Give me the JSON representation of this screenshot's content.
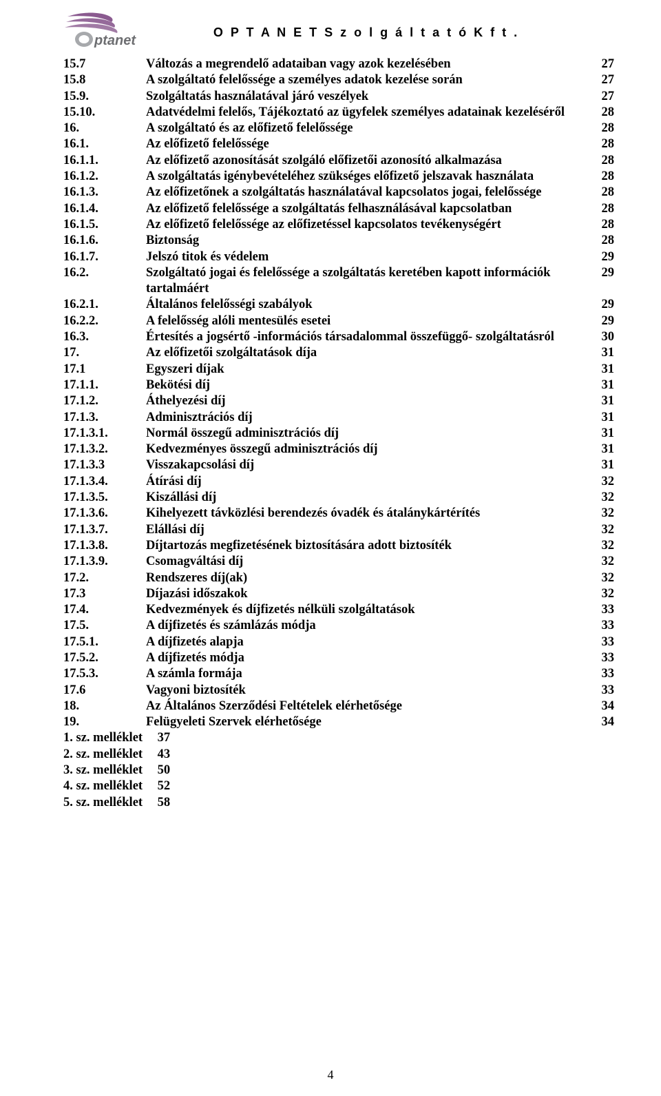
{
  "company_title": "O P T A N E T   S z o l g á l t a t ó   K f t .",
  "logo": {
    "brand_text": "Optanet",
    "swoosh_color": "#8a5a8f",
    "text_color": "#6d6e71",
    "o_fill": "#a7a9ac"
  },
  "page_number": "4",
  "toc": [
    {
      "num": "15.7",
      "title": "Változás a megrendelő adataiban vagy azok kezelésében",
      "page": "27"
    },
    {
      "num": "15.8",
      "title": "A szolgáltató felelőssége a személyes adatok kezelése során",
      "page": "27"
    },
    {
      "num": "15.9.",
      "title": "Szolgáltatás használatával járó veszélyek",
      "page": "27"
    },
    {
      "num": "15.10.",
      "title": "Adatvédelmi felelős, Tájékoztató az ügyfelek személyes adatainak kezeléséről",
      "page": "28"
    },
    {
      "num": "16.",
      "title": "A szolgáltató és az előfizető felelőssége",
      "page": "28"
    },
    {
      "num": "16.1.",
      "title": "Az előfizető felelőssége",
      "page": "28"
    },
    {
      "num": "16.1.1.",
      "title": "Az előfizető azonosítását szolgáló előfizetői azonosító alkalmazása",
      "page": "28"
    },
    {
      "num": "16.1.2.",
      "title": "A szolgáltatás igénybevételéhez szükséges előfizető jelszavak használata",
      "page": "28"
    },
    {
      "num": "16.1.3.",
      "title": "Az előfizetőnek a szolgáltatás használatával kapcsolatos jogai, felelőssége",
      "page": "28"
    },
    {
      "num": "16.1.4.",
      "title": "Az előfizető felelőssége a szolgáltatás felhasználásával kapcsolatban",
      "page": "28"
    },
    {
      "num": "16.1.5.",
      "title": "Az előfizető felelőssége az előfizetéssel kapcsolatos tevékenységért",
      "page": "28"
    },
    {
      "num": "16.1.6.",
      "title": "Biztonság",
      "page": "28"
    },
    {
      "num": "16.1.7.",
      "title": "Jelszó titok és védelem",
      "page": "29"
    },
    {
      "num": "16.2.",
      "title": "Szolgáltató jogai és felelőssége a szolgáltatás keretében kapott információk tartalmáért",
      "page": "29"
    },
    {
      "num": "16.2.1.",
      "title": "Általános felelősségi szabályok",
      "page": "29"
    },
    {
      "num": "16.2.2.",
      "title": "A felelősség alóli mentesülés esetei",
      "page": "29"
    },
    {
      "num": "16.3.",
      "title": "Értesítés a jogsértő -információs társadalommal összefüggő- szolgáltatásról",
      "page": "30"
    },
    {
      "num": "17.",
      "title": "Az előfizetői szolgáltatások díja",
      "page": "31"
    },
    {
      "num": "17.1",
      "title": "Egyszeri díjak",
      "page": "31"
    },
    {
      "num": "17.1.1.",
      "title": "Bekötési díj",
      "page": "31"
    },
    {
      "num": "17.1.2.",
      "title": "Áthelyezési díj",
      "page": "31"
    },
    {
      "num": "17.1.3.",
      "title": "Adminisztrációs díj",
      "page": "31"
    },
    {
      "num": "17.1.3.1.",
      "title": "Normál összegű adminisztrációs díj",
      "page": "31"
    },
    {
      "num": "17.1.3.2.",
      "title": "Kedvezményes összegű adminisztrációs díj",
      "page": "31"
    },
    {
      "num": "17.1.3.3",
      "title": "Visszakapcsolási díj",
      "page": "31"
    },
    {
      "num": "17.1.3.4.",
      "title": "Átírási díj",
      "page": "32"
    },
    {
      "num": "17.1.3.5.",
      "title": "Kiszállási díj",
      "page": "32"
    },
    {
      "num": "17.1.3.6.",
      "title": "Kihelyezett távközlési berendezés óvadék és átalánykártérítés",
      "page": "32"
    },
    {
      "num": "17.1.3.7.",
      "title": "Elállási díj",
      "page": "32"
    },
    {
      "num": "17.1.3.8.",
      "title": "Díjtartozás megfizetésének biztosítására adott biztosíték",
      "page": "32"
    },
    {
      "num": "17.1.3.9.",
      "title": "Csomagváltási díj",
      "page": "32"
    },
    {
      "num": "17.2.",
      "title": "Rendszeres díj(ak)",
      "page": "32"
    },
    {
      "num": "17.3",
      "title": "Díjazási időszakok",
      "page": "32"
    },
    {
      "num": "17.4.",
      "title": "Kedvezmények és díjfizetés nélküli szolgáltatások",
      "page": "33"
    },
    {
      "num": "17.5.",
      "title": "A díjfizetés és számlázás módja",
      "page": "33"
    },
    {
      "num": "17.5.1.",
      "title": "A díjfizetés alapja",
      "page": "33"
    },
    {
      "num": "17.5.2.",
      "title": "A díjfizetés módja",
      "page": "33"
    },
    {
      "num": "17.5.3.",
      "title": "A számla formája",
      "page": "33"
    },
    {
      "num": "17.6",
      "title": "Vagyoni biztosíték",
      "page": "33"
    },
    {
      "num": "18.",
      "title": "Az Általános Szerződési Feltételek elérhetősége",
      "page": "34"
    },
    {
      "num": "19.",
      "title": "Felügyeleti Szervek elérhetősége",
      "page": "34"
    },
    {
      "num": "1. sz. melléklet",
      "title": "",
      "page": "37",
      "mellek": true
    },
    {
      "num": "2. sz. melléklet",
      "title": "",
      "page": "43",
      "mellek": true
    },
    {
      "num": "3. sz. melléklet",
      "title": "",
      "page": "50",
      "mellek": true
    },
    {
      "num": "4. sz. melléklet",
      "title": "",
      "page": "52",
      "mellek": true
    },
    {
      "num": "5. sz. melléklet",
      "title": "",
      "page": "58",
      "mellek": true
    }
  ]
}
